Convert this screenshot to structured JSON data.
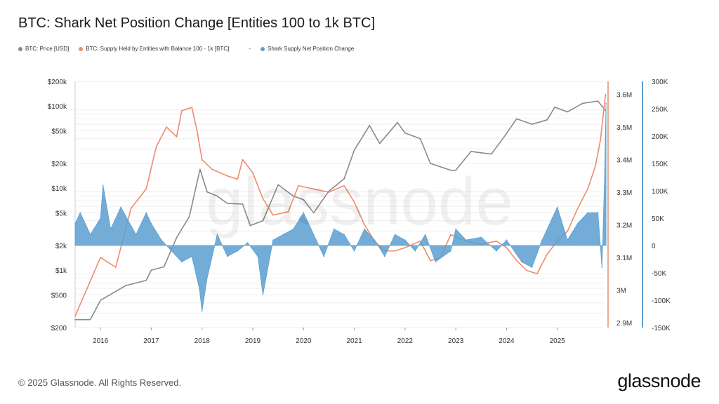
{
  "title": "BTC: Shark Net Position Change [Entities 100 to 1k BTC]",
  "legend": [
    {
      "label": "BTC: Price [USD]",
      "color": "#8a8a8a"
    },
    {
      "label": "BTC: Supply Held by Entities with Balance 100 - 1k [BTC]",
      "color": "#f08a6c"
    },
    {
      "label": "-",
      "color": ""
    },
    {
      "label": "Shark Supply Net Position Change",
      "color": "#5b9fd0"
    }
  ],
  "watermark": "glassnode",
  "footer": "© 2025 Glassnode. All Rights Reserved.",
  "logo": "glassnode",
  "chart_data": {
    "type": "line",
    "title": "BTC: Shark Net Position Change [Entities 100 to 1k BTC]",
    "x_ticks": [
      "2016",
      "2017",
      "2018",
      "2019",
      "2020",
      "2021",
      "2022",
      "2023",
      "2024",
      "2025"
    ],
    "xlim": [
      2015.5,
      2026.0
    ],
    "axes": {
      "price": {
        "scale": "log",
        "ylim": [
          200,
          200000
        ],
        "ticks": [
          "$200",
          "$500",
          "$1k",
          "$2k",
          "$5k",
          "$10k",
          "$20k",
          "$50k",
          "$100k",
          "$200k"
        ],
        "tick_values": [
          200,
          500,
          1000,
          2000,
          5000,
          10000,
          20000,
          50000,
          100000,
          200000
        ],
        "side": "left"
      },
      "supply": {
        "scale": "linear",
        "ylim": [
          2.885,
          3.64
        ],
        "ticks": [
          "2.9M",
          "3M",
          "3.1M",
          "3.2M",
          "3.3M",
          "3.4M",
          "3.5M",
          "3.6M"
        ],
        "tick_values": [
          2.9,
          3.0,
          3.1,
          3.2,
          3.3,
          3.4,
          3.5,
          3.6
        ],
        "side": "right"
      },
      "net": {
        "scale": "linear",
        "ylim": [
          -150,
          300
        ],
        "ticks": [
          "-150K",
          "-100K",
          "-50K",
          "0",
          "50K",
          "100K",
          "150K",
          "200K",
          "250K",
          "300K"
        ],
        "tick_values": [
          -150,
          -100,
          -50,
          0,
          50,
          100,
          150,
          200,
          250,
          300
        ],
        "side": "right-outer"
      }
    },
    "grid": true,
    "legend_position": "top-left",
    "series": [
      {
        "name": "BTC: Price [USD]",
        "axis": "price",
        "color": "#8a8a8a",
        "kind": "line",
        "x": [
          2015.5,
          2015.8,
          2016.0,
          2016.5,
          2016.9,
          2017.0,
          2017.25,
          2017.5,
          2017.75,
          2017.96,
          2018.1,
          2018.3,
          2018.5,
          2018.8,
          2018.95,
          2019.2,
          2019.5,
          2019.8,
          2020.0,
          2020.2,
          2020.5,
          2020.8,
          2021.0,
          2021.3,
          2021.5,
          2021.85,
          2022.0,
          2022.3,
          2022.5,
          2022.9,
          2023.0,
          2023.3,
          2023.7,
          2023.95,
          2024.2,
          2024.5,
          2024.8,
          2024.95,
          2025.2,
          2025.5,
          2025.8,
          2025.95
        ],
        "y": [
          250,
          250,
          430,
          650,
          750,
          1000,
          1100,
          2500,
          4500,
          17000,
          9000,
          8000,
          6500,
          6400,
          3500,
          4000,
          11000,
          8000,
          7200,
          5000,
          9200,
          13000,
          29000,
          58000,
          35000,
          63000,
          47000,
          40000,
          20000,
          16500,
          16500,
          28000,
          26000,
          42000,
          70000,
          60000,
          68000,
          97000,
          85000,
          108000,
          115000,
          88000
        ]
      },
      {
        "name": "BTC: Supply Held by Entities with Balance 100 - 1k [BTC]",
        "axis": "supply",
        "color": "#f08a6c",
        "kind": "line",
        "x": [
          2015.5,
          2016.0,
          2016.3,
          2016.6,
          2016.9,
          2017.1,
          2017.3,
          2017.5,
          2017.6,
          2017.8,
          2017.9,
          2018.0,
          2018.2,
          2018.5,
          2018.7,
          2018.8,
          2019.0,
          2019.2,
          2019.4,
          2019.7,
          2019.9,
          2020.2,
          2020.5,
          2020.8,
          2021.0,
          2021.2,
          2021.4,
          2021.6,
          2021.8,
          2022.0,
          2022.3,
          2022.5,
          2022.7,
          2022.9,
          2023.2,
          2023.5,
          2023.8,
          2024.0,
          2024.2,
          2024.4,
          2024.6,
          2024.8,
          2025.0,
          2025.2,
          2025.4,
          2025.6,
          2025.75,
          2025.85,
          2025.95
        ],
        "y": [
          2.92,
          3.1,
          3.07,
          3.25,
          3.31,
          3.44,
          3.5,
          3.47,
          3.55,
          3.56,
          3.49,
          3.4,
          3.37,
          3.35,
          3.34,
          3.4,
          3.36,
          3.28,
          3.23,
          3.24,
          3.32,
          3.31,
          3.3,
          3.32,
          3.27,
          3.2,
          3.15,
          3.12,
          3.12,
          3.13,
          3.15,
          3.09,
          3.1,
          3.17,
          3.15,
          3.14,
          3.15,
          3.13,
          3.09,
          3.06,
          3.05,
          3.11,
          3.15,
          3.18,
          3.25,
          3.31,
          3.38,
          3.46,
          3.6
        ]
      },
      {
        "name": "Shark Supply Net Position Change",
        "axis": "net",
        "color": "#5b9fd0",
        "kind": "area",
        "x": [
          2015.5,
          2015.6,
          2015.8,
          2016.0,
          2016.05,
          2016.2,
          2016.4,
          2016.7,
          2016.9,
          2017.0,
          2017.2,
          2017.4,
          2017.6,
          2017.8,
          2017.95,
          2018.0,
          2018.1,
          2018.3,
          2018.5,
          2018.7,
          2018.9,
          2019.1,
          2019.2,
          2019.4,
          2019.6,
          2019.8,
          2020.0,
          2020.2,
          2020.4,
          2020.6,
          2020.8,
          2021.0,
          2021.2,
          2021.4,
          2021.6,
          2021.8,
          2022.0,
          2022.2,
          2022.4,
          2022.6,
          2022.9,
          2023.0,
          2023.2,
          2023.5,
          2023.8,
          2024.0,
          2024.3,
          2024.5,
          2024.7,
          2024.9,
          2025.0,
          2025.2,
          2025.4,
          2025.6,
          2025.8,
          2025.88,
          2025.93,
          2025.96
        ],
        "y": [
          40,
          60,
          20,
          50,
          110,
          30,
          70,
          20,
          60,
          40,
          10,
          -10,
          -30,
          -20,
          -80,
          -120,
          -60,
          20,
          -20,
          -10,
          5,
          -20,
          -90,
          10,
          20,
          30,
          60,
          20,
          -20,
          30,
          20,
          -10,
          30,
          10,
          -20,
          20,
          10,
          -10,
          20,
          -30,
          -10,
          30,
          10,
          15,
          -10,
          10,
          -30,
          -40,
          10,
          50,
          70,
          10,
          40,
          60,
          60,
          -40,
          120,
          260
        ]
      }
    ]
  }
}
